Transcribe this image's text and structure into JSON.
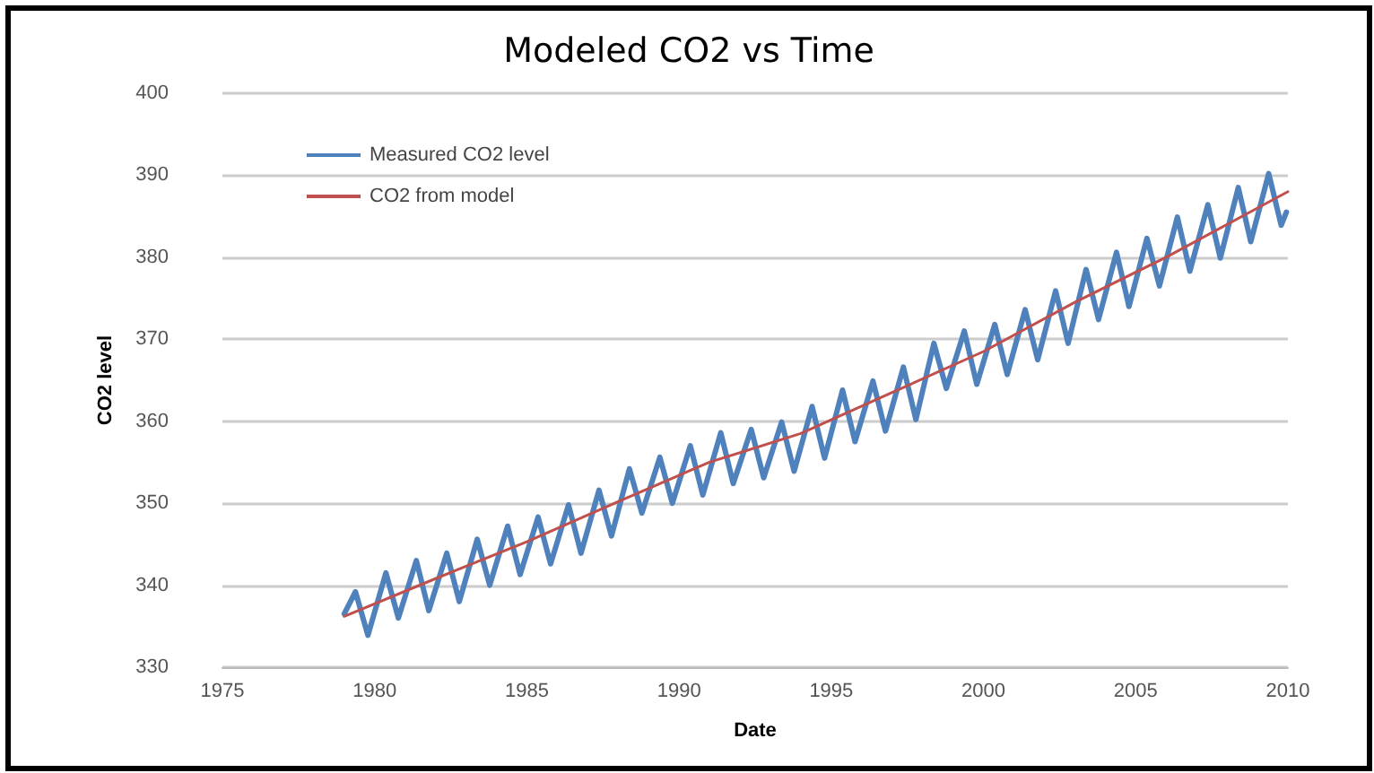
{
  "chart_data": {
    "type": "line",
    "title": "Modeled CO2 vs Time",
    "xlabel": "Date",
    "ylabel": "CO2 level",
    "xlim": [
      1975,
      2010
    ],
    "xticks": [
      1975,
      1980,
      1985,
      1990,
      1995,
      2000,
      2005,
      2010
    ],
    "ylim": [
      330,
      400
    ],
    "yticks": [
      330,
      340,
      350,
      360,
      370,
      380,
      390,
      400
    ],
    "grid": "y",
    "legend": "top left",
    "marker": "none",
    "line_style": "solid",
    "series": [
      {
        "name": "Measured CO2 level",
        "color": "#4f81bd",
        "x": [
          1979.0,
          1979.37,
          1979.78,
          1980.37,
          1980.78,
          1981.37,
          1981.78,
          1982.37,
          1982.78,
          1983.37,
          1983.78,
          1984.37,
          1984.78,
          1985.37,
          1985.78,
          1986.37,
          1986.78,
          1987.37,
          1987.78,
          1988.37,
          1988.78,
          1989.37,
          1989.78,
          1990.37,
          1990.78,
          1991.37,
          1991.78,
          1992.37,
          1992.78,
          1993.37,
          1993.78,
          1994.37,
          1994.78,
          1995.37,
          1995.78,
          1996.37,
          1996.78,
          1997.37,
          1997.78,
          1998.37,
          1998.78,
          1999.37,
          1999.78,
          2000.37,
          2000.78,
          2001.37,
          2001.78,
          2002.37,
          2002.78,
          2003.37,
          2003.78,
          2004.37,
          2004.78,
          2005.37,
          2005.78,
          2006.37,
          2006.78,
          2007.37,
          2007.78,
          2008.37,
          2008.78,
          2009.37,
          2009.78,
          2009.95
        ],
        "values": [
          336.5,
          339.2,
          333.9,
          341.5,
          336.0,
          343.0,
          336.9,
          343.9,
          338.0,
          345.6,
          340.0,
          347.2,
          341.3,
          348.3,
          342.6,
          349.8,
          343.9,
          351.6,
          346.0,
          354.2,
          348.8,
          355.6,
          350.0,
          357.0,
          351.0,
          358.6,
          352.4,
          359.0,
          353.1,
          359.9,
          353.9,
          361.8,
          355.5,
          363.8,
          357.5,
          364.9,
          358.8,
          366.6,
          360.2,
          369.5,
          364.0,
          371.0,
          364.5,
          371.8,
          365.7,
          373.6,
          367.5,
          375.9,
          369.5,
          378.5,
          372.4,
          380.6,
          374.0,
          382.3,
          376.5,
          384.9,
          378.3,
          386.4,
          379.9,
          388.5,
          381.9,
          390.2,
          383.9,
          385.5
        ]
      },
      {
        "name": "CO2 from model",
        "color": "#c0504d",
        "x": [
          1979,
          1982,
          1985,
          1988,
          1991,
          1994,
          1997,
          2000,
          2003,
          2006,
          2009,
          2010
        ],
        "values": [
          336.2,
          340.8,
          345.3,
          350.2,
          355.0,
          358.5,
          363.5,
          368.5,
          374.5,
          380.0,
          386.0,
          388.0
        ]
      }
    ]
  }
}
